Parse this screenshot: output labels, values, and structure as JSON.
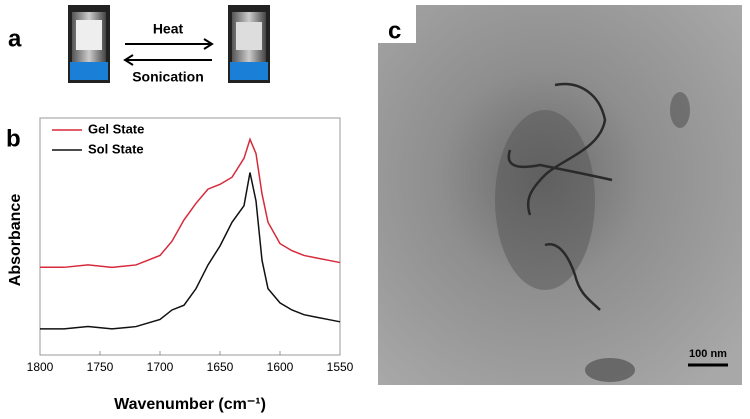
{
  "panel_a": {
    "label": "a",
    "arrow_top": "Heat",
    "arrow_bottom": "Sonication"
  },
  "panel_c": {
    "label": "c",
    "scale_bar": "100 nm"
  },
  "chart_data": {
    "type": "line",
    "panel_label": "b",
    "x_label": "Wavenumber (cm⁻¹)",
    "y_label": "Absorbance",
    "x": [
      1800,
      1780,
      1760,
      1740,
      1720,
      1700,
      1690,
      1680,
      1670,
      1660,
      1650,
      1640,
      1630,
      1625,
      1620,
      1615,
      1610,
      1600,
      1590,
      1580,
      1570,
      1560,
      1550
    ],
    "series": [
      {
        "name": "Gel State",
        "color": "#d62a3a",
        "values": [
          0.37,
          0.37,
          0.38,
          0.37,
          0.38,
          0.42,
          0.48,
          0.57,
          0.64,
          0.7,
          0.72,
          0.75,
          0.83,
          0.91,
          0.85,
          0.68,
          0.56,
          0.47,
          0.44,
          0.42,
          0.41,
          0.4,
          0.39
        ]
      },
      {
        "name": "Sol State",
        "color": "#111111",
        "values": [
          0.11,
          0.11,
          0.12,
          0.11,
          0.12,
          0.15,
          0.19,
          0.21,
          0.28,
          0.38,
          0.46,
          0.56,
          0.63,
          0.77,
          0.65,
          0.4,
          0.28,
          0.22,
          0.19,
          0.17,
          0.16,
          0.15,
          0.14
        ]
      }
    ],
    "xlim": [
      1800,
      1550
    ],
    "ylim": [
      0,
      1
    ],
    "xticks": [
      1800,
      1750,
      1700,
      1650,
      1600,
      1550
    ],
    "legend": "top-left"
  }
}
